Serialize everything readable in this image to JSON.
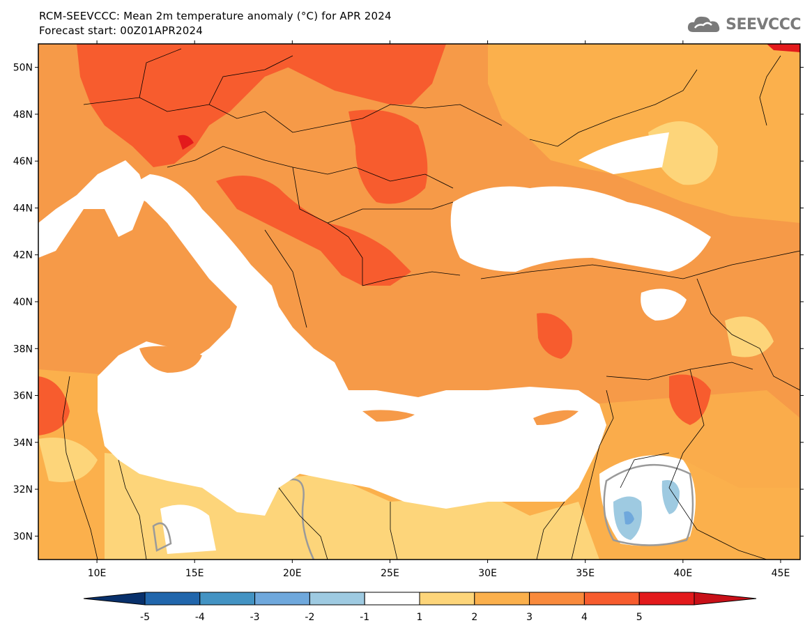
{
  "header": {
    "title": "RCM-SEEVCCC: Mean 2m temperature anomaly (°C) for APR 2024",
    "subtitle": "Forecast start: 00Z01APR2024"
  },
  "logo": {
    "text": "SEEVCCC",
    "icon": "cloud-icon"
  },
  "map": {
    "lon_range": [
      7,
      46
    ],
    "lat_range": [
      29,
      51
    ],
    "lon_ticks": [
      "10E",
      "15E",
      "20E",
      "25E",
      "30E",
      "35E",
      "40E",
      "45E"
    ],
    "lat_ticks": [
      "50N",
      "48N",
      "46N",
      "44N",
      "42N",
      "40N",
      "38N",
      "36N",
      "34N",
      "32N",
      "30N"
    ],
    "background_color": "#f69a48"
  },
  "colorbar": {
    "labels": [
      "-5",
      "-4",
      "-3",
      "-2",
      "-1",
      "1",
      "2",
      "3",
      "4",
      "5"
    ],
    "colors": [
      "#08306b",
      "#2166ac",
      "#4393c3",
      "#6fa8dc",
      "#9ecae1",
      "#ffffff",
      "#fdd57a",
      "#fbb04c",
      "#f98a3c",
      "#f75c2e",
      "#e31a1c",
      "#c81018"
    ]
  }
}
